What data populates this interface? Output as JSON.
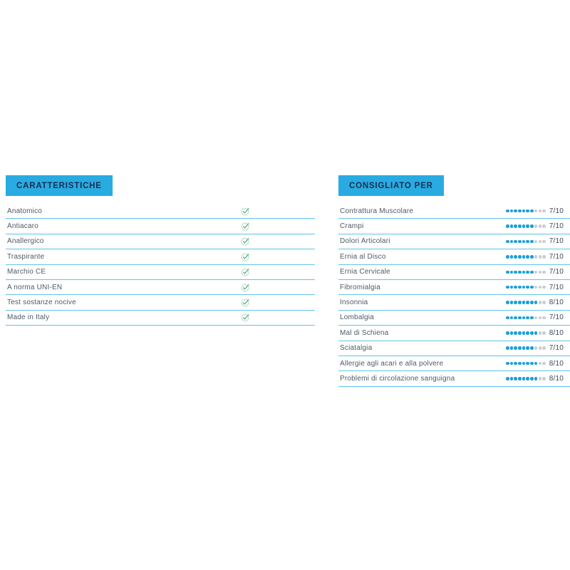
{
  "colors": {
    "header_bg": "#29abe2",
    "header_text": "#1b2d4f",
    "divider": "#5fc4e7",
    "label_text": "#4d5a67",
    "dot_on": "#1d9fd9",
    "dot_off": "#c9ced3",
    "score_text": "#3b4a5a",
    "check_green": "#44a26b",
    "check_circle": "#a9d6bd"
  },
  "caratteristiche": {
    "title": "CARATTERISTICHE",
    "check_icon": "check-icon",
    "items": [
      {
        "label": "Anatomico",
        "checked": true
      },
      {
        "label": "Antiacaro",
        "checked": true
      },
      {
        "label": "Anallergico",
        "checked": true
      },
      {
        "label": "Traspirante",
        "checked": true
      },
      {
        "label": "Marchio CE",
        "checked": true
      },
      {
        "label": "A norma UNI-EN",
        "checked": true
      },
      {
        "label": "Test sostanze nocive",
        "checked": true
      },
      {
        "label": "Made in Italy",
        "checked": true
      }
    ]
  },
  "consigliato": {
    "title": "CONSIGLIATO PER",
    "max_dots": 10,
    "items": [
      {
        "label": "Contrattura Muscolare",
        "score": 7,
        "score_text": "7/10"
      },
      {
        "label": "Crampi",
        "score": 7,
        "score_text": "7/10"
      },
      {
        "label": "Dolori Articolari",
        "score": 7,
        "score_text": "7/10"
      },
      {
        "label": "Ernia al Disco",
        "score": 7,
        "score_text": "7/10"
      },
      {
        "label": "Ernia Cervicale",
        "score": 7,
        "score_text": "7/10"
      },
      {
        "label": "Fibromialgia",
        "score": 7,
        "score_text": "7/10"
      },
      {
        "label": "Insonnia",
        "score": 8,
        "score_text": "8/10"
      },
      {
        "label": "Lombalgia",
        "score": 7,
        "score_text": "7/10"
      },
      {
        "label": "Mal di Schiena",
        "score": 8,
        "score_text": "8/10"
      },
      {
        "label": "Sciatalgia",
        "score": 7,
        "score_text": "7/10"
      },
      {
        "label": "Allergie agli acari e alla polvere",
        "score": 8,
        "score_text": "8/10"
      },
      {
        "label": "Problemi di circolazione sanguigna",
        "score": 8,
        "score_text": "8/10"
      }
    ]
  }
}
